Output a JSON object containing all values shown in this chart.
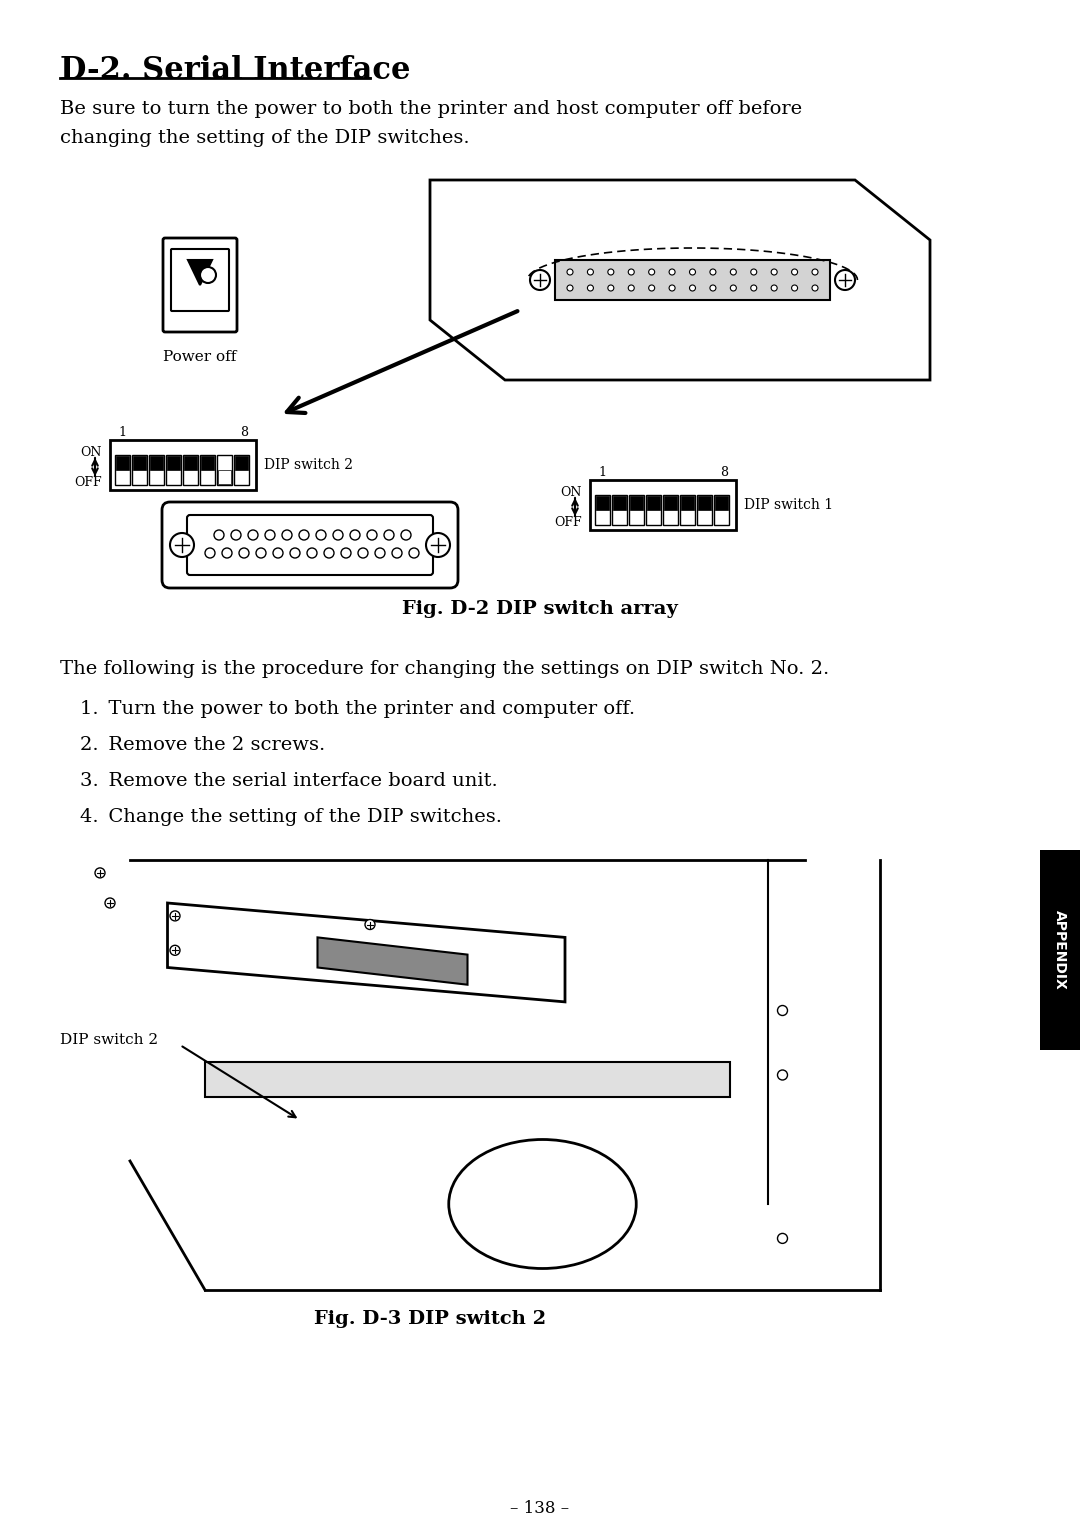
{
  "title": "D-2. Serial Interface",
  "intro_text": "Be sure to turn the power to both the printer and host computer off before\nchanging the setting of the DIP switches.",
  "fig_d2_caption": "Fig. D-2 DIP switch array",
  "fig_d3_caption": "Fig. D-3 DIP switch 2",
  "page_number": "– 138 –",
  "appendix_label": "APPENDIX",
  "power_off_label": "Power off",
  "dip_sw1_label": "DIP switch 1",
  "dip_sw2_label": "DIP switch 2",
  "on_label": "ON",
  "off_label": "OFF",
  "on_label2": "ON",
  "off_label2": "OFF",
  "num1": "1",
  "num8": "8",
  "procedure_intro": "The following is the procedure for changing the settings on DIP switch No. 2.",
  "steps": [
    "Turn the power to both the printer and computer off.",
    "Remove the 2 screws.",
    "Remove the serial interface board unit.",
    "Change the setting of the DIP switches."
  ],
  "dip2_switch_states": [
    1,
    1,
    1,
    1,
    1,
    1,
    0,
    1
  ],
  "dip1_switch_states": [
    1,
    1,
    1,
    1,
    1,
    1,
    1,
    1
  ],
  "bg_color": "#ffffff",
  "text_color": "#000000",
  "line_color": "#000000"
}
